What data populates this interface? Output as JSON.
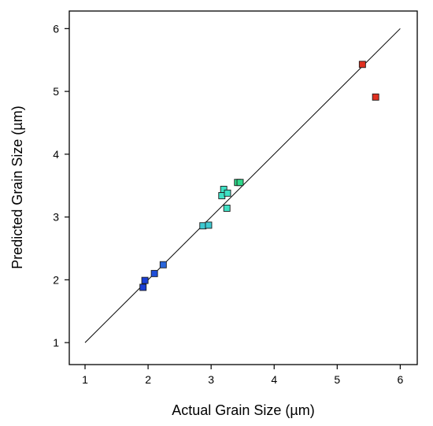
{
  "chart_data": {
    "type": "scatter",
    "xlabel": "Actual Grain Size (µm)",
    "ylabel": "Predicted Grain Size (µm)",
    "xlim": [
      0.75,
      6.27
    ],
    "ylim": [
      0.65,
      6.28
    ],
    "xticks": [
      1,
      2,
      3,
      4,
      5,
      6
    ],
    "yticks": [
      1,
      2,
      3,
      4,
      5,
      6
    ],
    "grid": false,
    "reference_line": {
      "from": [
        1,
        1
      ],
      "to": [
        6,
        6
      ],
      "color": "#000000"
    },
    "points": [
      {
        "x": 1.92,
        "y": 1.88,
        "color": "#1a3fd6"
      },
      {
        "x": 1.95,
        "y": 1.99,
        "color": "#1a3fd6"
      },
      {
        "x": 2.1,
        "y": 2.1,
        "color": "#1f4fd8"
      },
      {
        "x": 2.24,
        "y": 2.24,
        "color": "#2a66db"
      },
      {
        "x": 2.87,
        "y": 2.86,
        "color": "#3ec9d1"
      },
      {
        "x": 2.96,
        "y": 2.87,
        "color": "#3ec9d1"
      },
      {
        "x": 3.17,
        "y": 3.34,
        "color": "#3ee0c4"
      },
      {
        "x": 3.2,
        "y": 3.44,
        "color": "#3ee0c4"
      },
      {
        "x": 3.26,
        "y": 3.38,
        "color": "#3ee0c4"
      },
      {
        "x": 3.25,
        "y": 3.14,
        "color": "#3ee0c4"
      },
      {
        "x": 3.42,
        "y": 3.55,
        "color": "#2fd88a"
      },
      {
        "x": 3.46,
        "y": 3.55,
        "color": "#2fd88a"
      },
      {
        "x": 5.4,
        "y": 5.43,
        "color": "#e03020"
      },
      {
        "x": 5.61,
        "y": 4.91,
        "color": "#e03020"
      }
    ]
  }
}
